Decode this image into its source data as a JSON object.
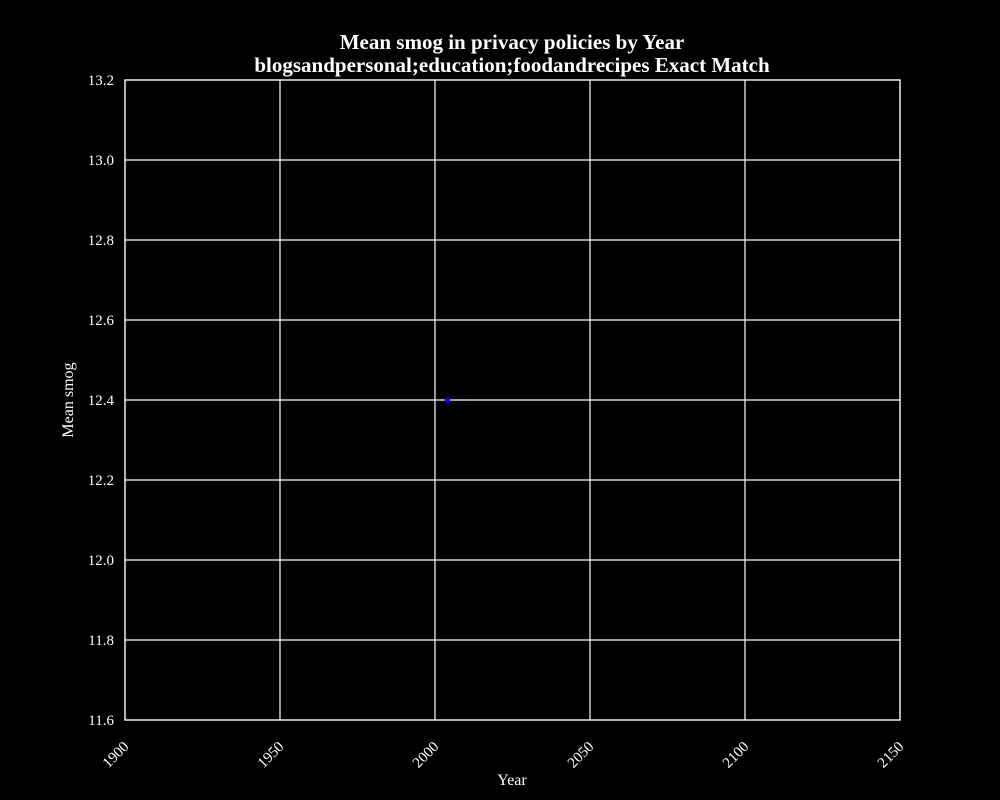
{
  "colors": {
    "background": "#000000",
    "foreground": "#ffffff",
    "grid": "#ffffff",
    "point": "#0000ff"
  },
  "chart_data": {
    "type": "scatter",
    "title": "Mean smog in privacy policies by Year",
    "subtitle": "blogsandpersonal;education;foodandrecipes Exact Match",
    "xlabel": "Year",
    "ylabel": "Mean smog",
    "xlim": [
      1900,
      2150
    ],
    "ylim": [
      11.6,
      13.2
    ],
    "xticks": [
      "1900",
      "1950",
      "2000",
      "2050",
      "2100",
      "2150"
    ],
    "yticks": [
      "11.6",
      "11.8",
      "12.0",
      "12.2",
      "12.4",
      "12.6",
      "12.8",
      "13.0",
      "13.2"
    ],
    "grid": true,
    "legend": "none",
    "series": [
      {
        "points": [
          {
            "x": 2004,
            "y": 12.4
          }
        ]
      }
    ]
  }
}
